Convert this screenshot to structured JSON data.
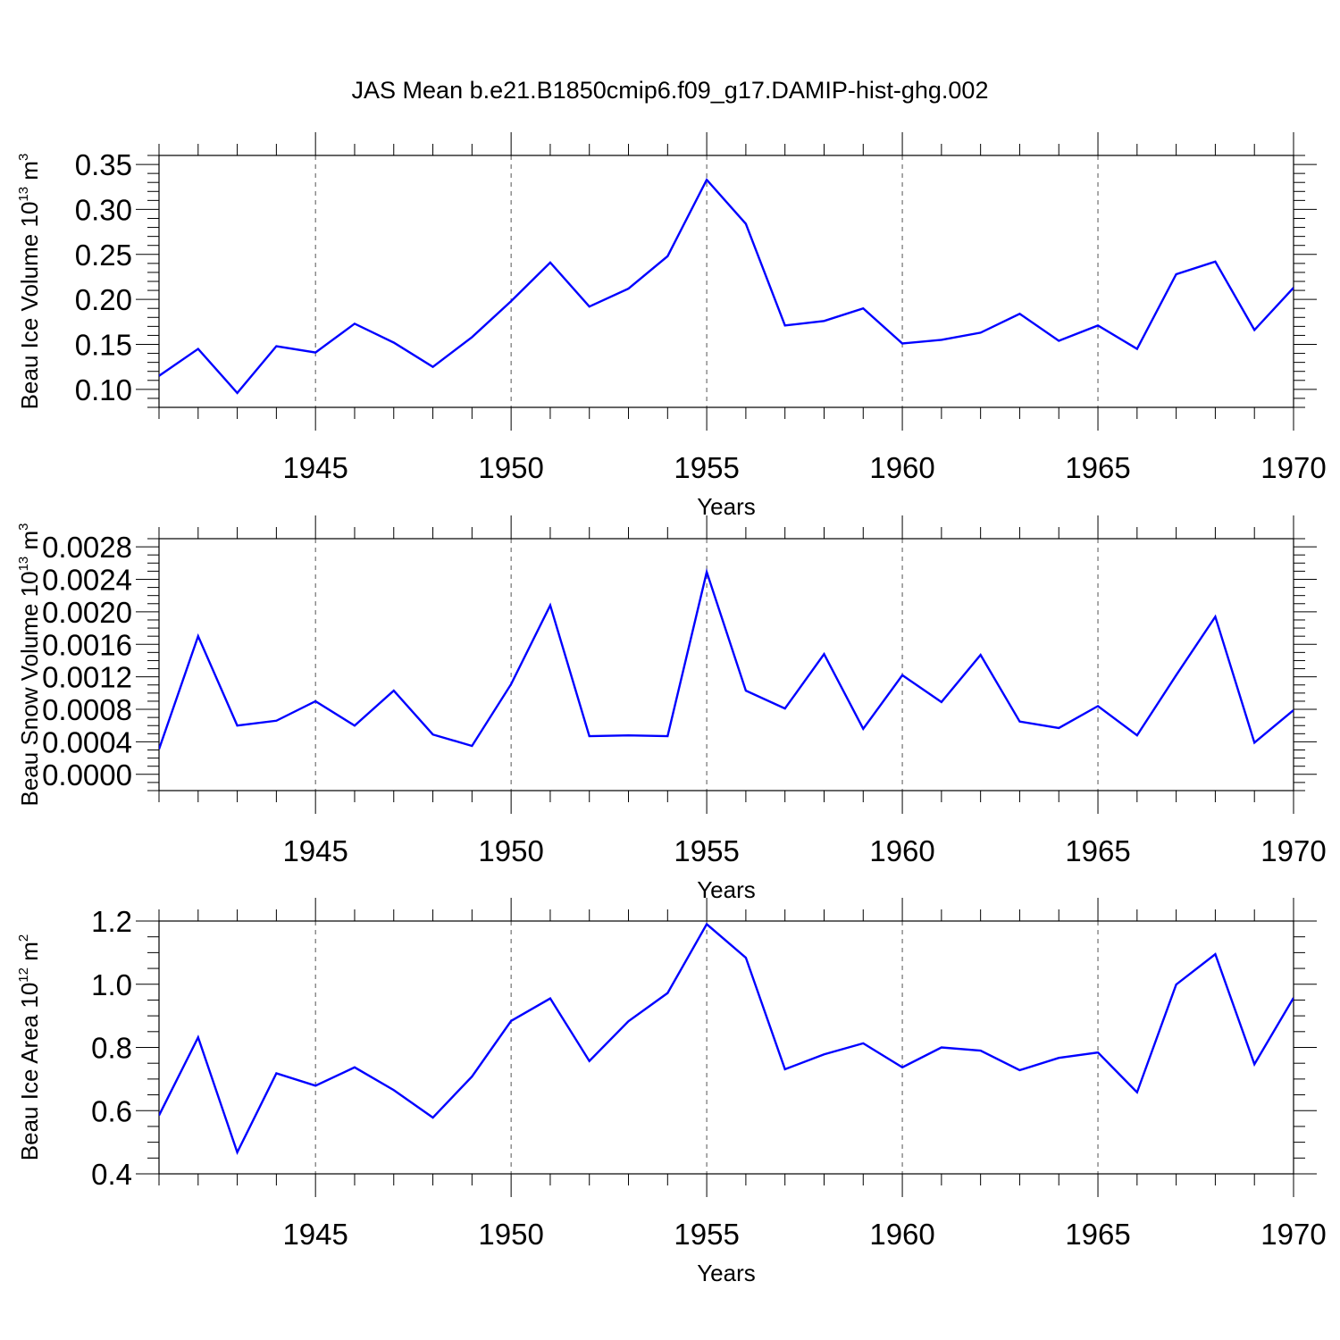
{
  "title": "JAS Mean b.e21.B1850cmip6.f09_g17.DAMIP-hist-ghg.002",
  "chart_data": [
    {
      "type": "line",
      "ylabel": {
        "main": "Beau Ice Volume 10",
        "exp": "13",
        "unit": " m",
        "unit_exp": "3"
      },
      "xlabel": "Years",
      "xlim": [
        1941,
        1970
      ],
      "ylim": [
        0.08,
        0.36
      ],
      "yticks": [
        0.1,
        0.15,
        0.2,
        0.25,
        0.3,
        0.35
      ],
      "ytick_labels": [
        "0.10",
        "0.15",
        "0.20",
        "0.25",
        "0.30",
        "0.35"
      ],
      "yminor_step": 0.01,
      "xticks": [
        1945,
        1950,
        1955,
        1960,
        1965,
        1970
      ],
      "xtick_labels": [
        "1945",
        "1950",
        "1955",
        "1960",
        "1965",
        "1970"
      ],
      "vgrid": [
        1945,
        1950,
        1955,
        1960,
        1965
      ],
      "series": [
        {
          "color": "#0000ff",
          "x": [
            1941,
            1942,
            1943,
            1944,
            1945,
            1946,
            1947,
            1948,
            1949,
            1950,
            1951,
            1952,
            1953,
            1954,
            1955,
            1956,
            1957,
            1958,
            1959,
            1960,
            1961,
            1962,
            1963,
            1964,
            1965,
            1966,
            1967,
            1968,
            1969,
            1970
          ],
          "y": [
            0.115,
            0.145,
            0.096,
            0.148,
            0.141,
            0.173,
            0.152,
            0.125,
            0.158,
            0.198,
            0.241,
            0.192,
            0.212,
            0.248,
            0.333,
            0.284,
            0.171,
            0.176,
            0.19,
            0.151,
            0.155,
            0.163,
            0.184,
            0.154,
            0.171,
            0.145,
            0.228,
            0.242,
            0.166,
            0.213
          ]
        }
      ]
    },
    {
      "type": "line",
      "ylabel": {
        "main": "Beau Snow Volume 10",
        "exp": "13",
        "unit": " m",
        "unit_exp": "3"
      },
      "xlabel": "Years",
      "xlim": [
        1941,
        1970
      ],
      "ylim": [
        -0.0002,
        0.0029
      ],
      "yticks": [
        0.0,
        0.0004,
        0.0008,
        0.0012,
        0.0016,
        0.002,
        0.0024,
        0.0028
      ],
      "ytick_labels": [
        "0.0000",
        "0.0004",
        "0.0008",
        "0.0012",
        "0.0016",
        "0.0020",
        "0.0024",
        "0.0028"
      ],
      "yminor_step": 0.0001,
      "xticks": [
        1945,
        1950,
        1955,
        1960,
        1965,
        1970
      ],
      "xtick_labels": [
        "1945",
        "1950",
        "1955",
        "1960",
        "1965",
        "1970"
      ],
      "vgrid": [
        1945,
        1950,
        1955,
        1960,
        1965
      ],
      "series": [
        {
          "color": "#0000ff",
          "x": [
            1941,
            1942,
            1943,
            1944,
            1945,
            1946,
            1947,
            1948,
            1949,
            1950,
            1951,
            1952,
            1953,
            1954,
            1955,
            1956,
            1957,
            1958,
            1959,
            1960,
            1961,
            1962,
            1963,
            1964,
            1965,
            1966,
            1967,
            1968,
            1969,
            1970
          ],
          "y": [
            0.00031,
            0.0017,
            0.0006,
            0.00066,
            0.0009,
            0.0006,
            0.00103,
            0.00049,
            0.00035,
            0.00111,
            0.00208,
            0.00047,
            0.00048,
            0.00047,
            0.00249,
            0.00103,
            0.00081,
            0.00148,
            0.00056,
            0.00122,
            0.00089,
            0.00147,
            0.00065,
            0.00057,
            0.00084,
            0.00048,
            0.00122,
            0.00194,
            0.00039,
            0.00079
          ]
        }
      ]
    },
    {
      "type": "line",
      "ylabel": {
        "main": "Beau Ice Area 10",
        "exp": "12",
        "unit": " m",
        "unit_exp": "2"
      },
      "xlabel": "Years",
      "xlim": [
        1941,
        1970
      ],
      "ylim": [
        0.4,
        1.2
      ],
      "yticks": [
        0.4,
        0.6,
        0.8,
        1.0,
        1.2
      ],
      "ytick_labels": [
        "0.4",
        "0.6",
        "0.8",
        "1.0",
        "1.2"
      ],
      "yminor_step": 0.05,
      "xticks": [
        1945,
        1950,
        1955,
        1960,
        1965,
        1970
      ],
      "xtick_labels": [
        "1945",
        "1950",
        "1955",
        "1960",
        "1965",
        "1970"
      ],
      "vgrid": [
        1945,
        1950,
        1955,
        1960,
        1965
      ],
      "series": [
        {
          "color": "#0000ff",
          "x": [
            1941,
            1942,
            1943,
            1944,
            1945,
            1946,
            1947,
            1948,
            1949,
            1950,
            1951,
            1952,
            1953,
            1954,
            1955,
            1956,
            1957,
            1958,
            1959,
            1960,
            1961,
            1962,
            1963,
            1964,
            1965,
            1966,
            1967,
            1968,
            1969,
            1970
          ],
          "y": [
            0.585,
            0.832,
            0.468,
            0.718,
            0.679,
            0.737,
            0.665,
            0.578,
            0.708,
            0.884,
            0.955,
            0.757,
            0.883,
            0.972,
            1.19,
            1.084,
            0.731,
            0.778,
            0.813,
            0.737,
            0.8,
            0.79,
            0.728,
            0.767,
            0.784,
            0.658,
            0.999,
            1.095,
            0.747,
            0.957
          ]
        }
      ]
    }
  ]
}
